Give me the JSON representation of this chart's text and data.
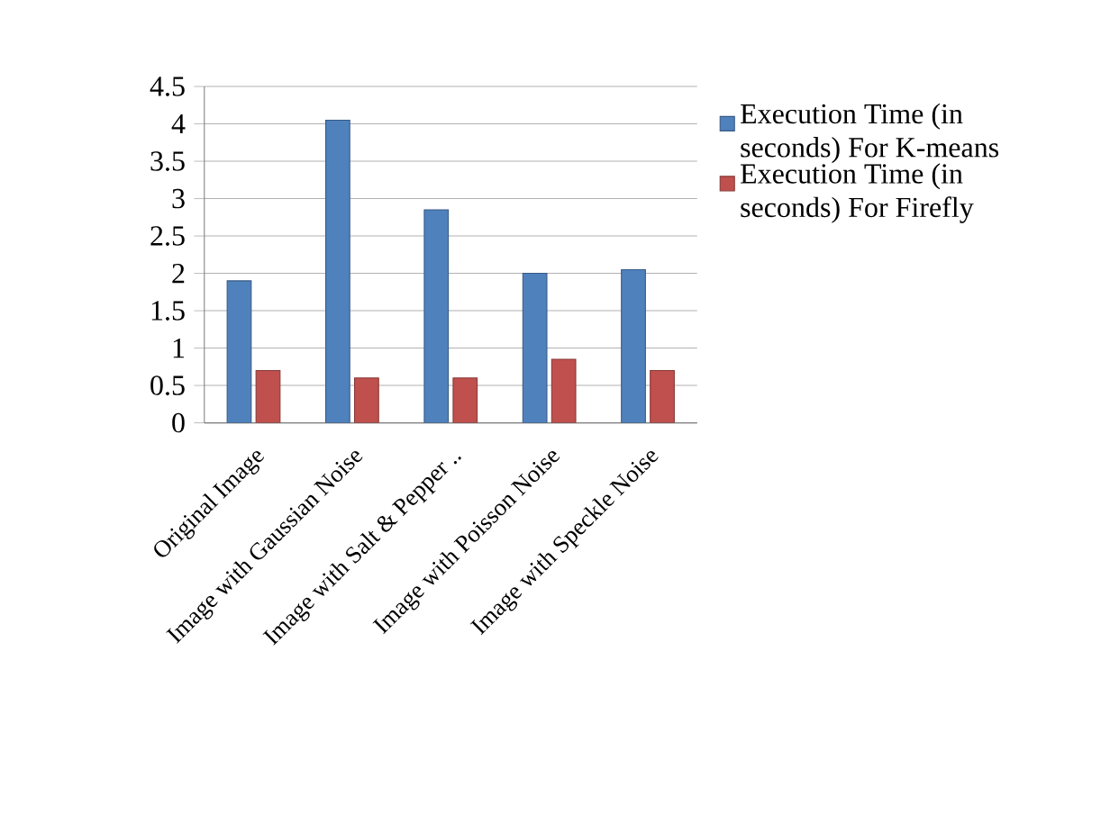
{
  "chart_data": {
    "type": "bar",
    "categories": [
      "Original Image",
      "Image with Gaussian Noise",
      "Image with Salt & Pepper ..",
      "Image with Poisson Noise",
      "Image with Speckle Noise"
    ],
    "series": [
      {
        "name": "Execution Time (in seconds)  For K-means",
        "color": "#4f81bd",
        "values": [
          1.9,
          4.05,
          2.85,
          2.0,
          2.05
        ]
      },
      {
        "name": "Execution Time (in seconds)  For Firefly",
        "color": "#c0504d",
        "values": [
          0.7,
          0.6,
          0.6,
          0.85,
          0.7
        ]
      }
    ],
    "ylim": [
      0,
      4.5
    ],
    "yticks": [
      0,
      0.5,
      1,
      1.5,
      2,
      2.5,
      3,
      3.5,
      4,
      4.5
    ],
    "grid": "y",
    "legend": "right"
  }
}
